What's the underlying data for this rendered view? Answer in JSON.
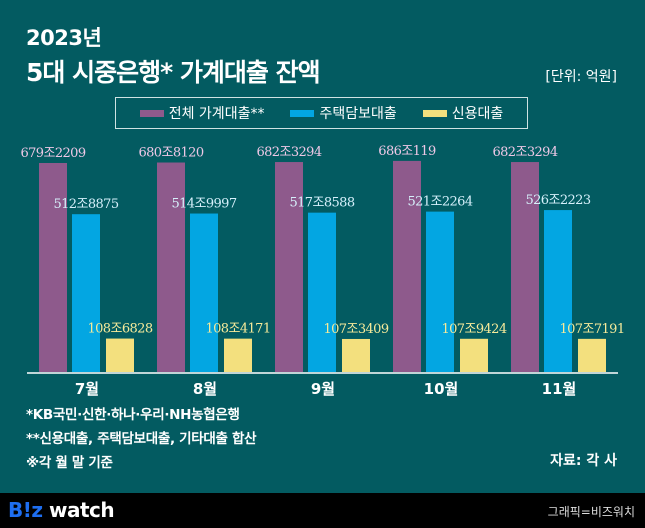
{
  "header": {
    "year": "2023년",
    "title": "5대 시중은행* 가계대출 잔액",
    "unit": "[단위: 억원]"
  },
  "colors": {
    "background": "#035b61",
    "total": "#8e5a8c",
    "mortgage": "#03a6e2",
    "credit": "#f3e07e",
    "total_label": "#eec8e6",
    "mortgage_label": "#d6f0fb",
    "credit_label": "#f6ea9a"
  },
  "chart_data": {
    "type": "bar",
    "title": "5대 시중은행* 가계대출 잔액",
    "unit": "억원",
    "categories": [
      "7월",
      "8월",
      "9월",
      "10월",
      "11월"
    ],
    "series": [
      {
        "name": "전체 가계대출**",
        "values": [
          6792209,
          6808120,
          6823294,
          6860119,
          6823294
        ],
        "labels": [
          "679조2209",
          "680조8120",
          "682조3294",
          "686조119",
          "682조3294"
        ]
      },
      {
        "name": "주택담보대출",
        "values": [
          5128875,
          5149997,
          5178588,
          5212264,
          5262223
        ],
        "labels": [
          "512조8875",
          "514조9997",
          "517조8588",
          "521조2264",
          "526조2223"
        ]
      },
      {
        "name": "신용대출",
        "values": [
          1086828,
          1084171,
          1073409,
          1079424,
          1077191
        ],
        "labels": [
          "108조6828",
          "108조4171",
          "107조3409",
          "107조9424",
          "107조7191"
        ]
      }
    ],
    "legend": "top-center",
    "grid": false
  },
  "notes": [
    "*KB국민·신한·하나·우리·NH농협은행",
    "**신용대출, 주택담보대출, 기타대출 합산",
    "※각 월 말 기준"
  ],
  "source": "자료: 각 사",
  "footer": {
    "logo_left": "B!z",
    "logo_right": "watch",
    "credit": "그래픽=비즈워치"
  }
}
